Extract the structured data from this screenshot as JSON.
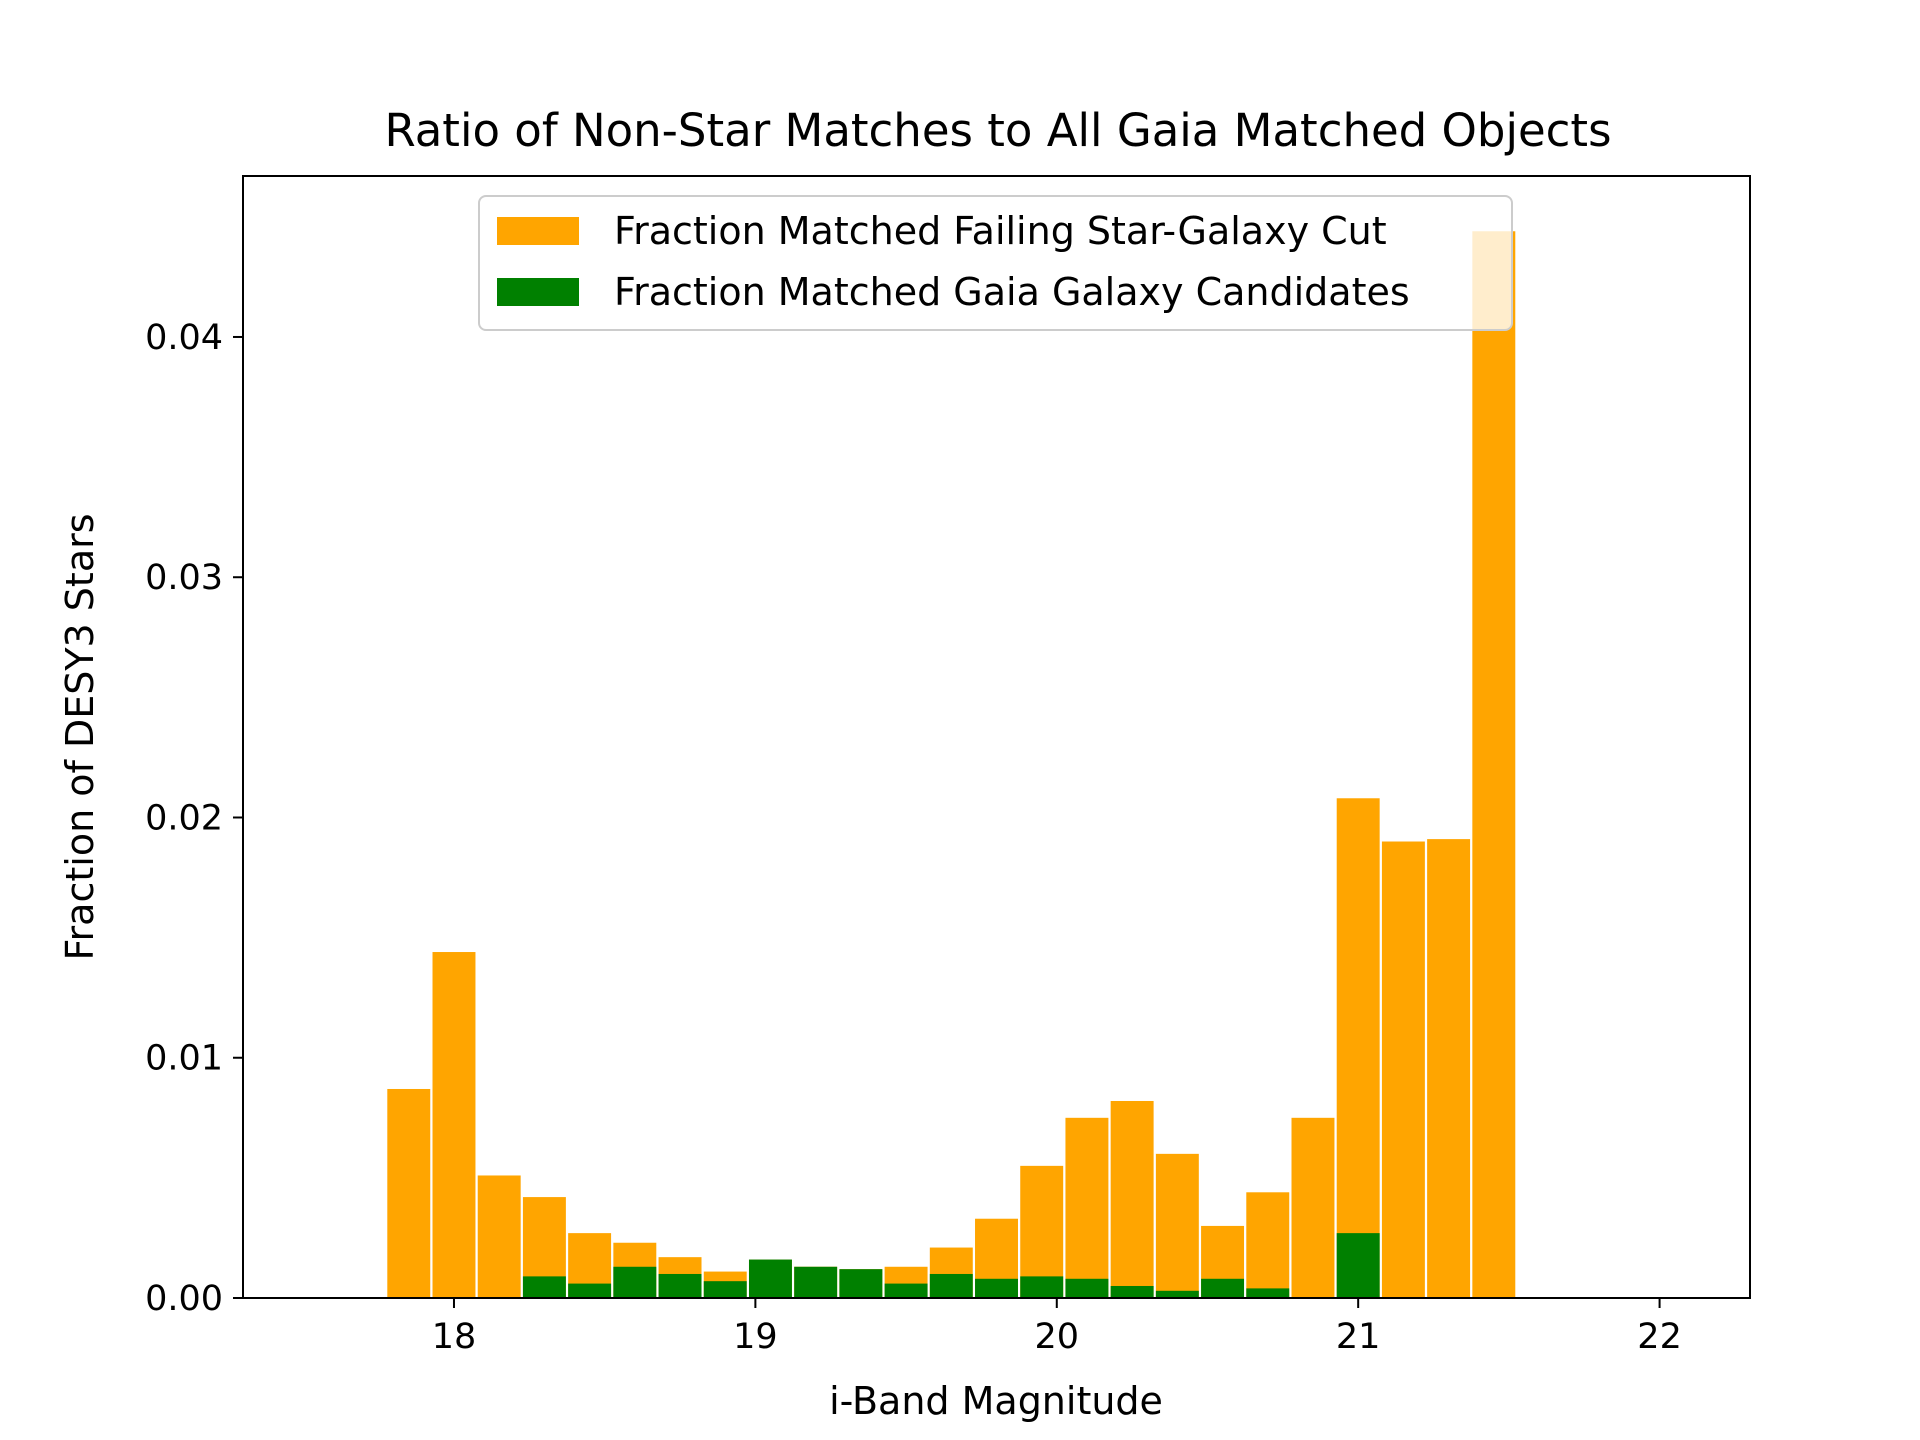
{
  "chart_data": {
    "type": "bar",
    "title": "Ratio of Non-Star Matches to All Gaia Matched Objects",
    "xlabel": "i-Band Magnitude",
    "ylabel": "Fraction of DESY3 Stars",
    "xlim": [
      17.3,
      22.3
    ],
    "ylim": [
      0,
      0.0467
    ],
    "x_ticks": [
      18,
      19,
      20,
      21,
      22
    ],
    "y_ticks": [
      0.0,
      0.01,
      0.02,
      0.03,
      0.04
    ],
    "x_tick_labels": [
      "18",
      "19",
      "20",
      "21",
      "22"
    ],
    "y_tick_labels": [
      "0.00",
      "0.01",
      "0.02",
      "0.03",
      "0.04"
    ],
    "bar_width": 0.1425,
    "x": [
      17.85,
      18.0,
      18.15,
      18.3,
      18.45,
      18.6,
      18.75,
      18.9,
      19.05,
      19.2,
      19.35,
      19.5,
      19.65,
      19.8,
      19.95,
      20.1,
      20.25,
      20.4,
      20.55,
      20.7,
      20.85,
      21.0,
      21.15,
      21.3,
      21.45
    ],
    "series": [
      {
        "name": "Fraction Matched Failing Star-Galaxy Cut",
        "color": "#ffa500",
        "values": [
          0.0087,
          0.0144,
          0.0051,
          0.0042,
          0.0027,
          0.0023,
          0.0017,
          0.0011,
          0.0016,
          0.0013,
          0.0012,
          0.0013,
          0.0021,
          0.0033,
          0.0055,
          0.0075,
          0.0082,
          0.006,
          0.003,
          0.0044,
          0.0075,
          0.0208,
          0.019,
          0.0191,
          0.0444
        ]
      },
      {
        "name": "Fraction Matched Gaia Galaxy Candidates",
        "color": "#008000",
        "values": [
          0.0,
          0.0,
          0.0,
          0.0009,
          0.0006,
          0.0013,
          0.001,
          0.0007,
          0.0016,
          0.0013,
          0.0012,
          0.0006,
          0.001,
          0.0008,
          0.0009,
          0.0008,
          0.0005,
          0.0003,
          0.0008,
          0.0004,
          0.0,
          0.0027,
          0.0,
          0.0,
          0.0
        ]
      }
    ],
    "legend_position": "upper center"
  }
}
